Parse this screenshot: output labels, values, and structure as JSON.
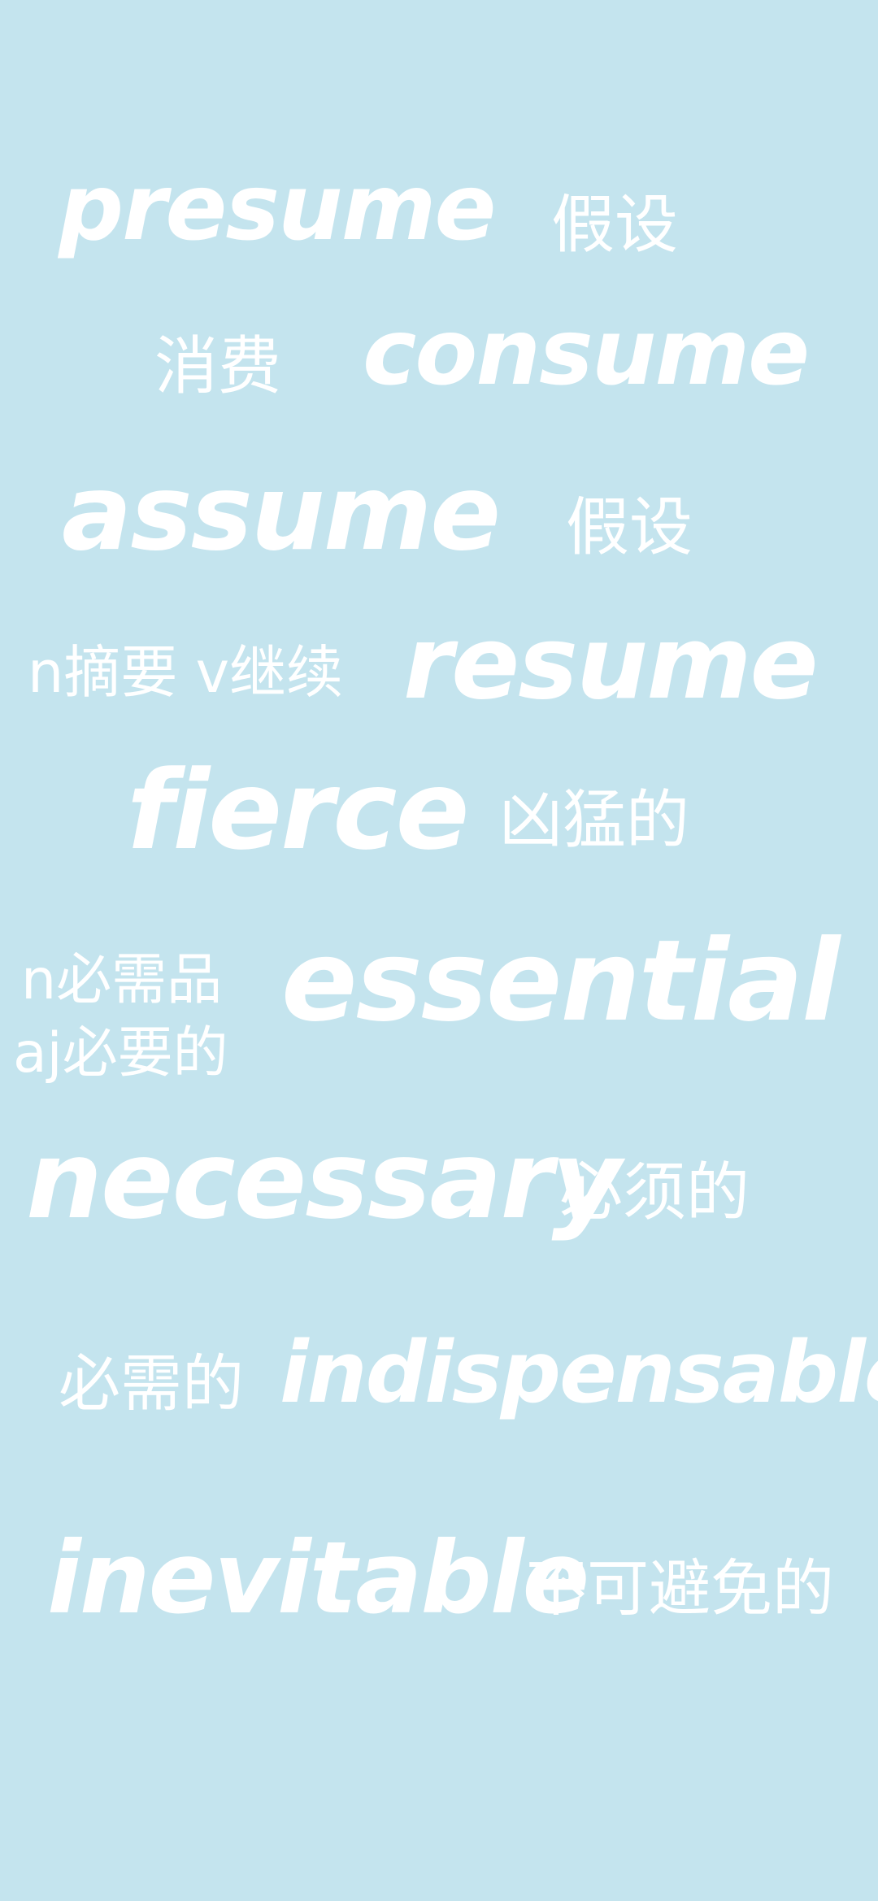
{
  "background_color": "#c4e4ee",
  "text_color": "#ffffff",
  "words": [
    {
      "word": "presume",
      "meaning": "假设"
    },
    {
      "word": "consume",
      "meaning": "消费"
    },
    {
      "word": "assume",
      "meaning": "假设"
    },
    {
      "word": "resume",
      "meaning": "n摘要 v继续"
    },
    {
      "word": "fierce",
      "meaning": "凶猛的"
    },
    {
      "word": "essential",
      "meaning_1": "n必需品",
      "meaning_2": "aj必要的"
    },
    {
      "word": "necessary",
      "meaning": "必须的"
    },
    {
      "word": "indispensable",
      "meaning": "必需的"
    },
    {
      "word": "inevitable",
      "meaning": "不可避免的"
    }
  ]
}
